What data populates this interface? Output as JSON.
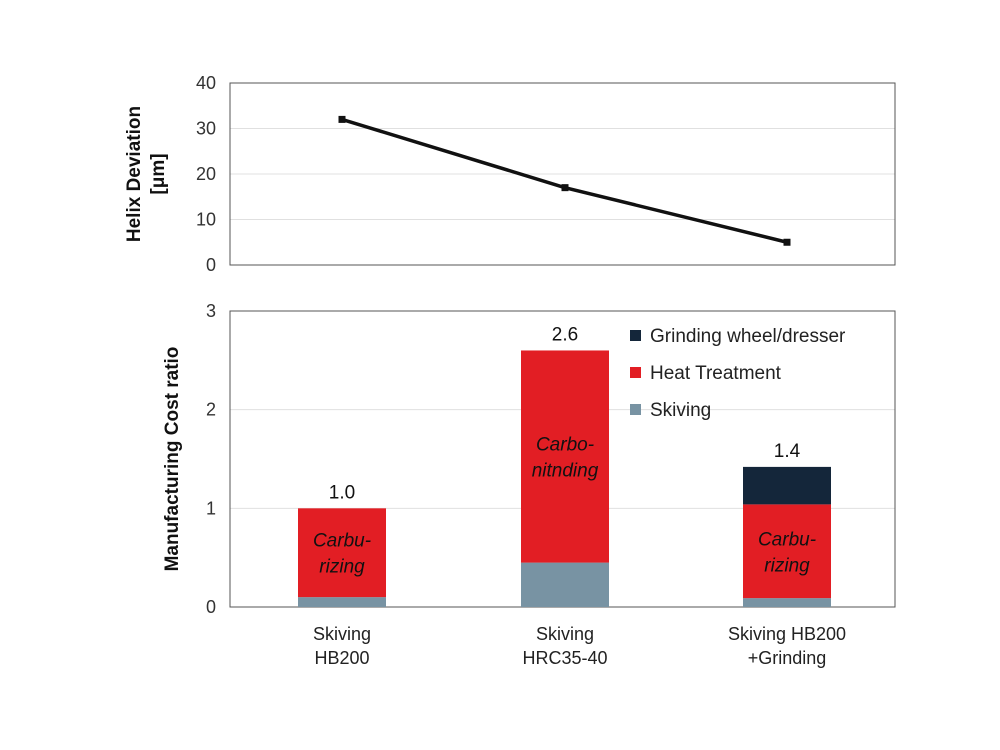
{
  "colors": {
    "line": "#111111",
    "grid": "#e0e0e0",
    "frame": "#555555",
    "Grinding wheel/dresser": "#14263a",
    "Heat Treatment": "#e21e24",
    "Skiving": "#7893a3"
  },
  "categories": [
    [
      "Skiving",
      "HB200"
    ],
    [
      "Skiving",
      "HRC35-40"
    ],
    [
      "Skiving HB200",
      "+Grinding"
    ]
  ],
  "chart_data": [
    {
      "type": "line",
      "ylabel": [
        "Helix Deviation",
        "[μm]"
      ],
      "ylim": [
        0,
        40
      ],
      "yticks": [
        0,
        10,
        20,
        30,
        40
      ],
      "grid": true,
      "series": [
        {
          "values": [
            32,
            17,
            5
          ]
        }
      ]
    },
    {
      "type": "bar",
      "stacked": true,
      "ylabel": "Manufacturing Cost ratio",
      "ylim": [
        0,
        3
      ],
      "yticks": [
        0,
        1,
        2,
        3
      ],
      "grid": true,
      "legend_position": "top-right",
      "series": [
        {
          "name": "Skiving",
          "values": [
            0.1,
            0.45,
            0.09
          ]
        },
        {
          "name": "Heat Treatment",
          "values": [
            0.9,
            2.15,
            0.95
          ]
        },
        {
          "name": "Grinding wheel/dresser",
          "values": [
            0,
            0,
            0.38
          ]
        }
      ],
      "totals": [
        "1.0",
        "2.6",
        "1.4"
      ],
      "segment_labels": [
        [
          "Carbu-",
          "rizing"
        ],
        [
          "Carbo-",
          "nitnding"
        ],
        [
          "Carbu-",
          "rizing"
        ]
      ],
      "legend_order": [
        "Grinding wheel/dresser",
        "Heat Treatment",
        "Skiving"
      ]
    }
  ]
}
